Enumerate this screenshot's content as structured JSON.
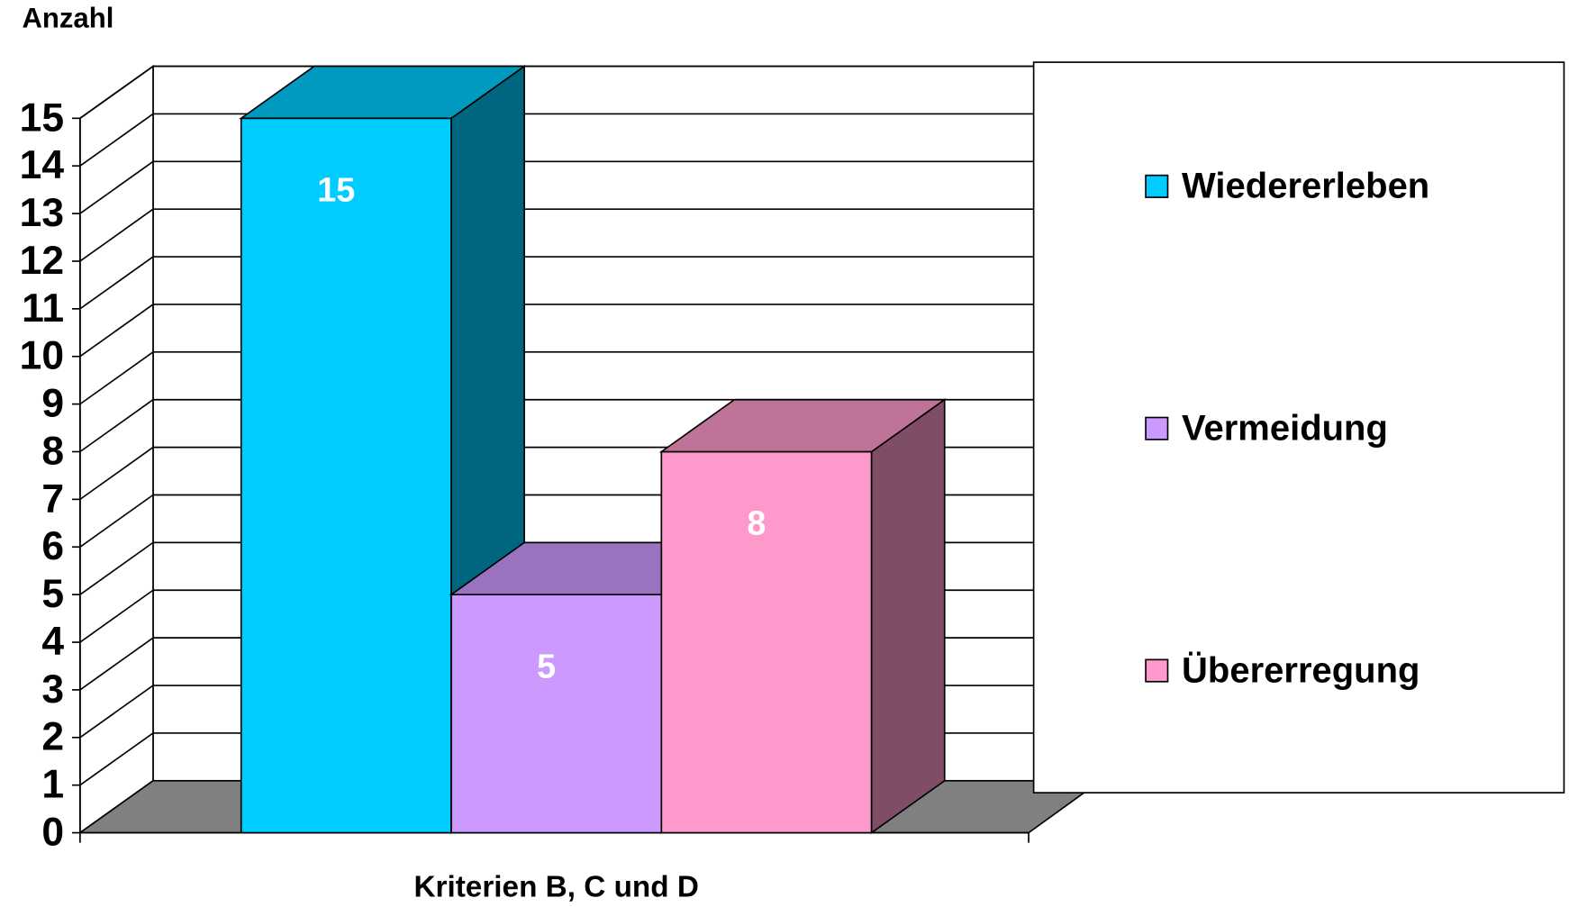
{
  "chart_data": {
    "type": "bar3d",
    "y_label": "Anzahl",
    "categories": [
      "Kriterien B, C und D"
    ],
    "series": [
      {
        "name": "Wiedererleben",
        "color": "#00ccff",
        "values": [
          15
        ]
      },
      {
        "name": "Vermeidung",
        "color": "#cc99ff",
        "values": [
          5
        ]
      },
      {
        "name": "Übererregung",
        "color": "#ff99cc",
        "values": [
          8
        ]
      }
    ],
    "ylim": [
      0,
      15
    ],
    "yticks": [
      0,
      1,
      2,
      3,
      4,
      5,
      6,
      7,
      8,
      9,
      10,
      11,
      12,
      13,
      14,
      15
    ],
    "grid": true,
    "legend": "right"
  }
}
